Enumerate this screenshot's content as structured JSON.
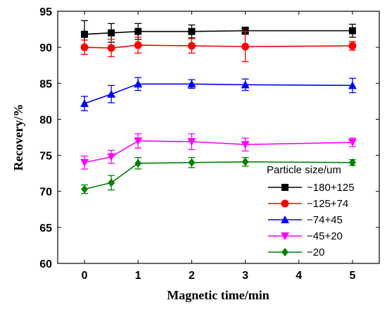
{
  "chart_data": {
    "type": "line",
    "xlabel": "Magnetic time/min",
    "ylabel": "Recovery/%",
    "xlim": [
      -0.5,
      5.5
    ],
    "ylim": [
      60,
      95
    ],
    "xticks": [
      0,
      1,
      2,
      3,
      4,
      5
    ],
    "yticks": [
      60,
      65,
      70,
      75,
      80,
      85,
      90,
      95
    ],
    "x": [
      0,
      0.5,
      1,
      2,
      3,
      5
    ],
    "legend_title": "Particle size/um",
    "legend_position": "bottom-right",
    "grid": false,
    "series": [
      {
        "name": "−180+125",
        "color": "#000000",
        "marker": "square",
        "values": [
          91.8,
          92.0,
          92.2,
          92.2,
          92.3,
          92.3
        ],
        "errors": [
          1.9,
          1.3,
          1.1,
          0.9,
          0.5,
          0.9
        ]
      },
      {
        "name": "−125+74",
        "color": "#ff0000",
        "marker": "circle",
        "values": [
          90.0,
          89.9,
          90.3,
          90.2,
          90.1,
          90.2
        ],
        "errors": [
          1.0,
          1.2,
          1.1,
          1.0,
          2.1,
          0.6
        ]
      },
      {
        "name": "−74+45",
        "color": "#0000ff",
        "marker": "triangle-up",
        "values": [
          82.2,
          83.5,
          84.9,
          84.9,
          84.8,
          84.7
        ],
        "errors": [
          1.0,
          1.2,
          0.9,
          0.6,
          0.8,
          1.0
        ]
      },
      {
        "name": "−45+20",
        "color": "#ff00ff",
        "marker": "triangle-down",
        "values": [
          74.0,
          74.8,
          77.0,
          76.9,
          76.5,
          76.8
        ],
        "errors": [
          0.9,
          0.9,
          1.0,
          1.1,
          0.9,
          0.6
        ]
      },
      {
        "name": "−20",
        "color": "#008000",
        "marker": "diamond",
        "values": [
          70.3,
          71.2,
          73.9,
          74.0,
          74.1,
          74.0
        ],
        "errors": [
          0.6,
          1.0,
          0.8,
          0.7,
          0.6,
          0.4
        ]
      }
    ]
  }
}
